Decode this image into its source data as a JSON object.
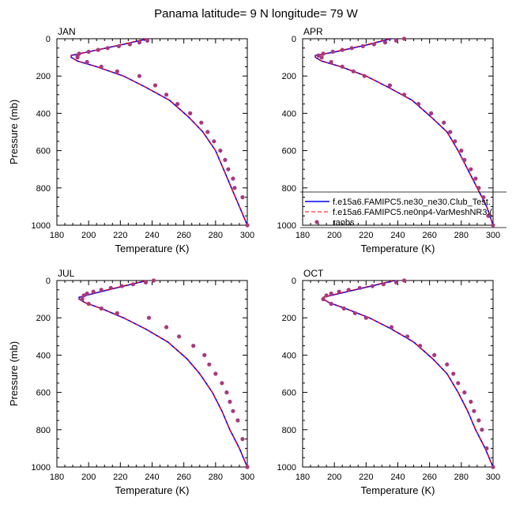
{
  "title": "Panama  latitude= 9 N longitude= 79 W",
  "colors": {
    "model1": "#0000ff",
    "model2": "#ff0000",
    "obs": "#a63a7c",
    "axis": "#000000"
  },
  "legend": {
    "entries": [
      {
        "label": "f.e15a6.FAMIPC5.ne30_ne30.Club_Test.",
        "style": "solid-line"
      },
      {
        "label": "f.e15a6.FAMIPC5.ne0np4-VarMeshNR3.(",
        "style": "dashed-line"
      },
      {
        "label": "raobs",
        "style": "marker"
      }
    ]
  },
  "chart_data": [
    {
      "type": "line",
      "panel": "JAN",
      "xlabel": "Temperature (K)",
      "ylabel": "Pressure (mb)",
      "xlim": [
        180,
        300
      ],
      "ylim": [
        1000,
        0
      ],
      "xticks": [
        180,
        200,
        220,
        240,
        260,
        280,
        300
      ],
      "yticks": [
        0,
        200,
        400,
        600,
        800,
        1000
      ],
      "series": [
        {
          "name": "model1",
          "x": [
            238,
            232,
            222,
            200,
            189,
            189,
            193,
            205,
            222,
            236,
            251,
            263,
            272,
            280,
            285,
            290,
            295,
            300
          ],
          "y": [
            0,
            10,
            30,
            70,
            90,
            100,
            120,
            150,
            200,
            260,
            330,
            420,
            500,
            600,
            700,
            800,
            900,
            1000
          ]
        },
        {
          "name": "model2",
          "x": [
            237,
            231,
            221,
            200,
            189,
            189,
            193,
            205,
            222,
            236,
            251,
            263,
            272,
            280,
            285,
            290,
            295,
            300
          ],
          "y": [
            0,
            10,
            30,
            70,
            90,
            100,
            120,
            150,
            200,
            260,
            330,
            420,
            500,
            600,
            700,
            800,
            900,
            1000
          ]
        },
        {
          "name": "raobs",
          "x": [
            237,
            232,
            226,
            219,
            212,
            206,
            200,
            194,
            193,
            193,
            199,
            208,
            218,
            232,
            242,
            249,
            256,
            264,
            271,
            275,
            279,
            283,
            286,
            288,
            291,
            292,
            297,
            300
          ],
          "y": [
            10,
            20,
            30,
            40,
            50,
            60,
            70,
            80,
            90,
            100,
            125,
            150,
            175,
            200,
            250,
            300,
            350,
            400,
            450,
            500,
            550,
            600,
            650,
            700,
            750,
            800,
            850,
            1000
          ]
        }
      ]
    },
    {
      "type": "line",
      "panel": "APR",
      "xlabel": "Temperature (K)",
      "ylabel": "",
      "xlim": [
        180,
        300
      ],
      "ylim": [
        1000,
        0
      ],
      "xticks": [
        180,
        200,
        220,
        240,
        260,
        280,
        300
      ],
      "yticks": [
        0,
        200,
        400,
        600,
        800,
        1000
      ],
      "series": [
        {
          "name": "model1",
          "x": [
            236,
            231,
            222,
            201,
            188,
            188,
            192,
            204,
            220,
            234,
            249,
            261,
            271,
            278,
            284,
            290,
            296,
            300
          ],
          "y": [
            0,
            10,
            30,
            70,
            90,
            100,
            120,
            150,
            200,
            260,
            330,
            420,
            500,
            600,
            700,
            800,
            900,
            1000
          ]
        },
        {
          "name": "model2",
          "x": [
            235,
            230,
            221,
            200,
            188,
            188,
            192,
            204,
            220,
            234,
            249,
            261,
            271,
            278,
            284,
            290,
            296,
            300
          ],
          "y": [
            0,
            10,
            30,
            70,
            90,
            100,
            120,
            150,
            200,
            260,
            330,
            420,
            500,
            600,
            700,
            800,
            900,
            1000
          ]
        },
        {
          "name": "raobs",
          "x": [
            244,
            239,
            232,
            225,
            218,
            211,
            205,
            199,
            193,
            190,
            192,
            198,
            205,
            212,
            219,
            235,
            244,
            253,
            261,
            269,
            273,
            276,
            280,
            282,
            286,
            289,
            291,
            294,
            297,
            300
          ],
          "y": [
            0,
            10,
            20,
            30,
            40,
            50,
            60,
            70,
            80,
            90,
            100,
            125,
            150,
            175,
            200,
            250,
            300,
            350,
            400,
            450,
            500,
            550,
            600,
            650,
            700,
            750,
            800,
            850,
            950,
            1000
          ]
        }
      ]
    },
    {
      "type": "line",
      "panel": "JUL",
      "xlabel": "Temperature (K)",
      "ylabel": "Pressure (mb)",
      "xlim": [
        180,
        300
      ],
      "ylim": [
        1000,
        0
      ],
      "xticks": [
        180,
        200,
        220,
        240,
        260,
        280,
        300
      ],
      "yticks": [
        0,
        200,
        400,
        600,
        800,
        1000
      ],
      "series": [
        {
          "name": "model1",
          "x": [
            237,
            232,
            222,
            203,
            194,
            194,
            198,
            208,
            222,
            236,
            250,
            262,
            270,
            278,
            284,
            289,
            295,
            300
          ],
          "y": [
            0,
            10,
            30,
            70,
            90,
            100,
            120,
            150,
            200,
            260,
            330,
            420,
            500,
            600,
            700,
            800,
            900,
            1000
          ]
        },
        {
          "name": "model2",
          "x": [
            236,
            231,
            221,
            202,
            194,
            194,
            198,
            208,
            222,
            236,
            250,
            262,
            270,
            278,
            284,
            289,
            295,
            300
          ],
          "y": [
            0,
            10,
            30,
            70,
            90,
            100,
            120,
            150,
            200,
            260,
            330,
            420,
            500,
            600,
            700,
            800,
            900,
            1000
          ]
        },
        {
          "name": "raobs",
          "x": [
            241,
            236,
            228,
            221,
            214,
            208,
            203,
            199,
            197,
            196,
            200,
            208,
            218,
            238,
            249,
            257,
            266,
            273,
            276,
            280,
            284,
            287,
            289,
            291,
            294,
            297,
            300
          ],
          "y": [
            0,
            10,
            20,
            30,
            40,
            50,
            60,
            70,
            80,
            100,
            125,
            150,
            175,
            200,
            250,
            300,
            350,
            400,
            450,
            500,
            550,
            600,
            650,
            700,
            750,
            850,
            1000
          ]
        }
      ]
    },
    {
      "type": "line",
      "panel": "OCT",
      "xlabel": "Temperature (K)",
      "ylabel": "",
      "xlim": [
        180,
        300
      ],
      "ylim": [
        1000,
        0
      ],
      "xticks": [
        180,
        200,
        220,
        240,
        260,
        280,
        300
      ],
      "yticks": [
        0,
        200,
        400,
        600,
        800,
        1000
      ],
      "series": [
        {
          "name": "model1",
          "x": [
            238,
            233,
            223,
            203,
            193,
            193,
            197,
            207,
            222,
            236,
            250,
            262,
            271,
            278,
            284,
            289,
            295,
            300
          ],
          "y": [
            0,
            10,
            30,
            70,
            90,
            100,
            120,
            150,
            200,
            260,
            330,
            420,
            500,
            600,
            700,
            800,
            900,
            1000
          ]
        },
        {
          "name": "model2",
          "x": [
            237,
            232,
            222,
            202,
            193,
            193,
            197,
            207,
            222,
            236,
            250,
            262,
            271,
            278,
            284,
            289,
            295,
            300
          ],
          "y": [
            0,
            10,
            30,
            70,
            90,
            100,
            120,
            150,
            200,
            260,
            330,
            420,
            500,
            600,
            700,
            800,
            900,
            1000
          ]
        },
        {
          "name": "raobs",
          "x": [
            244,
            239,
            231,
            224,
            216,
            209,
            203,
            198,
            195,
            193,
            198,
            206,
            213,
            220,
            236,
            246,
            254,
            263,
            271,
            275,
            278,
            282,
            286,
            288,
            291,
            293,
            296,
            300
          ],
          "y": [
            0,
            10,
            20,
            30,
            40,
            50,
            60,
            70,
            80,
            100,
            125,
            150,
            175,
            200,
            250,
            300,
            350,
            400,
            450,
            500,
            550,
            600,
            650,
            700,
            750,
            800,
            900,
            1000
          ]
        }
      ]
    }
  ]
}
